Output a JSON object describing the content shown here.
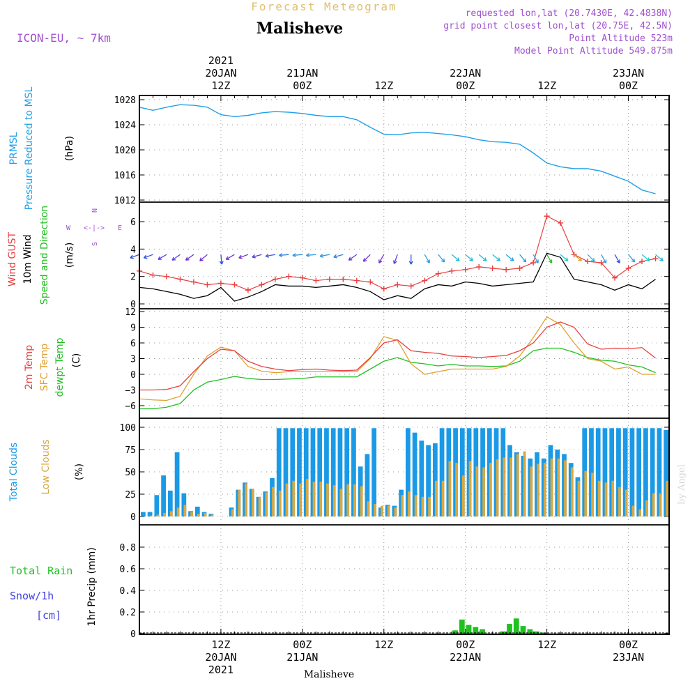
{
  "header": {
    "forecast_title": "Forecast Meteogram",
    "location": "Malisheve",
    "model": "ICON-EU, ~ 7km",
    "requested": "requested lon,lat (20.7430E, 42.4838N)",
    "gridpoint": "grid point closest lon,lat (20.75E, 42.5N)",
    "point_alt": "Point Altitude 523m",
    "model_alt": "Model Point Altitude 549.875m"
  },
  "time_axis": {
    "top_labels": [
      {
        "h": 12,
        "lines": [
          "2021",
          "20JAN",
          "12Z"
        ]
      },
      {
        "h": 24,
        "lines": [
          "21JAN",
          "00Z"
        ]
      },
      {
        "h": 36,
        "lines": [
          "12Z"
        ]
      },
      {
        "h": 48,
        "lines": [
          "22JAN",
          "00Z"
        ]
      },
      {
        "h": 60,
        "lines": [
          "12Z"
        ]
      },
      {
        "h": 72,
        "lines": [
          "23JAN",
          "00Z"
        ]
      }
    ],
    "bottom_labels": [
      {
        "h": 12,
        "lines": [
          "12Z",
          "20JAN",
          "2021"
        ]
      },
      {
        "h": 24,
        "lines": [
          "00Z",
          "21JAN"
        ]
      },
      {
        "h": 36,
        "lines": [
          "12Z"
        ]
      },
      {
        "h": 48,
        "lines": [
          "00Z",
          "22JAN"
        ]
      },
      {
        "h": 60,
        "lines": [
          "12Z"
        ]
      },
      {
        "h": 72,
        "lines": [
          "00Z",
          "23JAN"
        ]
      }
    ],
    "footer_location": "Malisheve"
  },
  "watermark": "by Angel",
  "panel_labels": {
    "pressure": {
      "l1": "PRMSL",
      "l2": "Pressure Reduced to MSL",
      "unit": "(hPa)"
    },
    "wind": {
      "gust": "Wind GUST",
      "wind10": "10m Wind",
      "dir": "Speed and Direction",
      "unit": "(m/s)",
      "compass_n": "N",
      "compass_s": "S",
      "compass_w": "W",
      "compass_e": "E",
      "compass_mid": "<-|->"
    },
    "temp": {
      "t2m": "2m Temp",
      "sfc": "SFC Temp",
      "dew": "dewpt Temp",
      "unit": "(C)"
    },
    "clouds": {
      "total": "Total Clouds",
      "low": "Low Clouds",
      "unit": "(%)"
    },
    "precip": {
      "rain": "Total Rain",
      "snow": "Snow/1h",
      "snow_unit": "[cm]",
      "axis": "1hr Precip (mm)"
    }
  },
  "colors": {
    "pressure": "#1fa0e8",
    "gust": "#e84040",
    "wind10": "#000000",
    "t2m": "#e84040",
    "sfc": "#e0a030",
    "dew": "#20c020",
    "total_clouds": "#1a9ae6",
    "low_clouds": "#d8a840",
    "rain": "#20c020",
    "snow": "#4040e0",
    "header_title": "#e0c070",
    "header_info": "#a050d0"
  },
  "chart_data": [
    {
      "type": "line",
      "name": "pressure",
      "ylim": [
        1012,
        1028
      ],
      "yticks": [
        1012,
        1016,
        1020,
        1024,
        1028
      ],
      "x_hours": [
        0,
        2,
        4,
        6,
        8,
        10,
        12,
        14,
        16,
        18,
        20,
        22,
        24,
        26,
        28,
        30,
        32,
        34,
        36,
        38,
        40,
        42,
        44,
        46,
        48,
        50,
        52,
        54,
        56,
        58,
        60,
        62,
        64,
        66,
        68,
        70,
        72,
        74,
        76
      ],
      "values": [
        1026.8,
        1026.3,
        1026.8,
        1027.2,
        1027.1,
        1026.8,
        1025.6,
        1025.3,
        1025.5,
        1025.9,
        1026.1,
        1026.0,
        1025.8,
        1025.5,
        1025.3,
        1025.3,
        1024.8,
        1023.6,
        1022.5,
        1022.4,
        1022.7,
        1022.8,
        1022.6,
        1022.4,
        1022.1,
        1021.6,
        1021.3,
        1021.2,
        1020.9,
        1019.5,
        1017.9,
        1017.3,
        1017.0,
        1017.0,
        1016.6,
        1015.8,
        1015.0,
        1013.6,
        1013.0
      ]
    },
    {
      "type": "line",
      "name": "wind",
      "ylim": [
        0,
        7.2
      ],
      "yticks": [
        0,
        2,
        4,
        6
      ],
      "x_hours": [
        0,
        2,
        4,
        6,
        8,
        10,
        12,
        14,
        16,
        18,
        20,
        22,
        24,
        26,
        28,
        30,
        32,
        34,
        36,
        38,
        40,
        42,
        44,
        46,
        48,
        50,
        52,
        54,
        56,
        58,
        60,
        62,
        64,
        66,
        68,
        70,
        72,
        74,
        76
      ],
      "gust": [
        2.4,
        2.1,
        2.0,
        1.8,
        1.6,
        1.4,
        1.5,
        1.4,
        1.0,
        1.4,
        1.8,
        2.0,
        1.9,
        1.7,
        1.8,
        1.8,
        1.7,
        1.6,
        1.1,
        1.4,
        1.3,
        1.7,
        2.2,
        2.4,
        2.5,
        2.7,
        2.6,
        2.5,
        2.6,
        3.0,
        6.4,
        5.9,
        3.6,
        3.1,
        3.0,
        1.9,
        2.6,
        3.1,
        3.3
      ],
      "wind10": [
        1.2,
        1.1,
        0.9,
        0.7,
        0.4,
        0.6,
        1.2,
        0.2,
        0.5,
        0.9,
        1.4,
        1.3,
        1.3,
        1.2,
        1.3,
        1.4,
        1.2,
        0.9,
        0.3,
        0.6,
        0.4,
        1.1,
        1.4,
        1.3,
        1.6,
        1.5,
        1.3,
        1.4,
        1.5,
        1.6,
        3.7,
        3.4,
        1.8,
        1.6,
        1.4,
        1.0,
        1.4,
        1.1,
        1.8
      ],
      "arrows_x": [
        0,
        2,
        4,
        6,
        8,
        10,
        12,
        14,
        16,
        18,
        20,
        22,
        24,
        26,
        28,
        30,
        32,
        34,
        36,
        38,
        40,
        42,
        44,
        46,
        48,
        50,
        52,
        54,
        56,
        58,
        60,
        62,
        64,
        66,
        68,
        70,
        72,
        74,
        76
      ],
      "arrows_angle": [
        200,
        200,
        210,
        215,
        215,
        220,
        275,
        210,
        200,
        195,
        190,
        185,
        185,
        185,
        190,
        195,
        215,
        225,
        240,
        250,
        270,
        300,
        310,
        320,
        320,
        320,
        320,
        320,
        310,
        300,
        300,
        320,
        320,
        315,
        300,
        300,
        310,
        320,
        320
      ],
      "arrows_color": [
        "#3050e0",
        "#3050e0",
        "#6040e0",
        "#6040e0",
        "#7030d0",
        "#7030d0",
        "#3050e0",
        "#7030d0",
        "#7030d0",
        "#5040d8",
        "#4060d8",
        "#3080e0",
        "#2a98e0",
        "#2a98e0",
        "#2a98e0",
        "#3080e0",
        "#6040e0",
        "#7030d0",
        "#7030d0",
        "#5040d8",
        "#3050e0",
        "#2aa0e0",
        "#2aa0e0",
        "#22b8d8",
        "#22b8d8",
        "#22b8d8",
        "#22b8d8",
        "#2aa0e0",
        "#2aa0e0",
        "#2aa0e0",
        "#20c020",
        "#22c8c8",
        "#e0a030",
        "#22b8d8",
        "#2aa0e0",
        "#3050e0",
        "#2aa0e0",
        "#22c8c8",
        "#22b8d8"
      ]
    },
    {
      "type": "line",
      "name": "temperature",
      "ylim": [
        -7,
        12
      ],
      "yticks": [
        -6,
        -3,
        0,
        3,
        6,
        9,
        12
      ],
      "x_hours": [
        0,
        2,
        4,
        6,
        8,
        10,
        12,
        14,
        16,
        18,
        20,
        22,
        24,
        26,
        28,
        30,
        32,
        34,
        36,
        38,
        40,
        42,
        44,
        46,
        48,
        50,
        52,
        54,
        56,
        58,
        60,
        62,
        64,
        66,
        68,
        70,
        72,
        74,
        76
      ],
      "t2m": [
        -3.0,
        -3.0,
        -2.9,
        -2.2,
        0.5,
        3.0,
        4.8,
        4.5,
        2.5,
        1.5,
        1.0,
        0.7,
        0.9,
        1.0,
        0.8,
        0.7,
        0.8,
        3.2,
        6.0,
        6.6,
        4.5,
        4.2,
        4.0,
        3.5,
        3.4,
        3.2,
        3.4,
        3.6,
        4.5,
        6.0,
        9.0,
        10.0,
        9.0,
        5.8,
        4.8,
        5.0,
        4.9,
        5.1,
        3.1
      ],
      "sfc": [
        -4.7,
        -4.9,
        -5.0,
        -4.2,
        0.0,
        3.5,
        5.2,
        4.5,
        1.5,
        0.6,
        0.3,
        0.5,
        0.6,
        0.5,
        0.5,
        0.5,
        0.5,
        3.0,
        7.2,
        6.5,
        2.0,
        0.0,
        0.5,
        1.0,
        1.0,
        1.0,
        1.0,
        1.5,
        3.5,
        7.0,
        11.0,
        9.5,
        6.0,
        3.0,
        2.5,
        1.0,
        1.4,
        0.0,
        0.0
      ],
      "dew": [
        -6.6,
        -6.6,
        -6.3,
        -5.6,
        -3.0,
        -1.5,
        -1.0,
        -0.4,
        -0.8,
        -1.0,
        -1.0,
        -0.9,
        -0.8,
        -0.5,
        -0.5,
        -0.5,
        -0.5,
        1.0,
        2.5,
        3.2,
        2.3,
        2.0,
        1.6,
        1.9,
        1.6,
        1.6,
        1.5,
        1.6,
        2.5,
        4.5,
        5.0,
        5.0,
        4.2,
        3.2,
        2.7,
        2.5,
        1.8,
        1.4,
        0.3
      ]
    },
    {
      "type": "bar",
      "name": "clouds",
      "ylim": [
        0,
        100
      ],
      "yticks": [
        0,
        25,
        50,
        75,
        100
      ],
      "x_hours": [
        0,
        1,
        2,
        3,
        4,
        5,
        6,
        7,
        8,
        9,
        10,
        11,
        12,
        13,
        14,
        15,
        16,
        17,
        18,
        19,
        20,
        21,
        22,
        23,
        24,
        25,
        26,
        27,
        28,
        29,
        30,
        31,
        32,
        33,
        34,
        35,
        36,
        37,
        38,
        39,
        40,
        41,
        42,
        43,
        44,
        45,
        46,
        47,
        48,
        49,
        50,
        51,
        52,
        53,
        54,
        55,
        56,
        57,
        58,
        59,
        60,
        61,
        62,
        63,
        64,
        65,
        66,
        67,
        68,
        69,
        70,
        71,
        72,
        73,
        74,
        75,
        76,
        77
      ],
      "total": [
        5,
        5,
        24,
        46,
        29,
        72,
        26,
        6,
        11,
        5,
        3,
        0,
        0,
        10,
        30,
        38,
        31,
        22,
        28,
        43,
        99,
        99,
        99,
        99,
        99,
        99,
        99,
        99,
        99,
        99,
        99,
        99,
        56,
        70,
        99,
        10,
        13,
        12,
        30,
        99,
        94,
        85,
        80,
        82,
        99,
        99,
        99,
        99,
        99,
        99,
        99,
        99,
        99,
        99,
        80,
        72,
        68,
        65,
        72,
        65,
        80,
        75,
        70,
        60,
        44,
        99,
        99,
        99,
        99,
        99,
        99,
        99,
        99,
        99,
        99,
        99,
        99,
        97
      ],
      "low": [
        0,
        1,
        2,
        4,
        6,
        10,
        13,
        5,
        3,
        4,
        2,
        0,
        0,
        8,
        30,
        37,
        31,
        22,
        27,
        33,
        29,
        37,
        40,
        37,
        42,
        39,
        39,
        37,
        35,
        31,
        36,
        36,
        34,
        17,
        14,
        12,
        12,
        10,
        24,
        28,
        24,
        22,
        22,
        40,
        40,
        62,
        60,
        46,
        62,
        56,
        55,
        60,
        64,
        66,
        66,
        70,
        73,
        56,
        59,
        60,
        65,
        65,
        63,
        55,
        40,
        51,
        49,
        40,
        38,
        40,
        33,
        30,
        12,
        8,
        18,
        26,
        26,
        40
      ]
    },
    {
      "type": "bar",
      "name": "precip",
      "ylim": [
        0,
        1.0
      ],
      "yticks": [
        0,
        0.2,
        0.4,
        0.6,
        0.8
      ],
      "x_hours": [
        46,
        47,
        48,
        49,
        50,
        51,
        52,
        53,
        54,
        55,
        56,
        57,
        58,
        59
      ],
      "rain": [
        0.03,
        0.13,
        0.08,
        0.06,
        0.04,
        0.0,
        0.0,
        0.02,
        0.09,
        0.14,
        0.07,
        0.04,
        0.02,
        0.01
      ]
    }
  ]
}
